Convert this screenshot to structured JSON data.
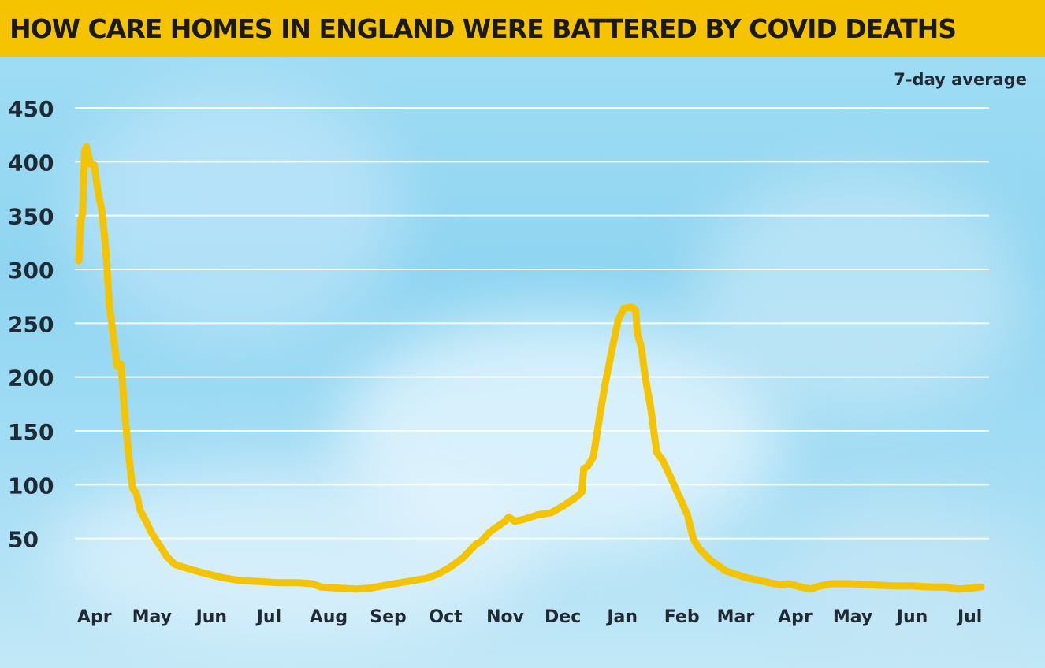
{
  "title": "HOW CARE HOMES IN ENGLAND WERE BATTERED BY COVID DEATHS",
  "colors": {
    "title_bg": "#f6c300",
    "line": "#f4c400",
    "gridline": "#ffffff",
    "text": "#1f2a33"
  },
  "chart_data": {
    "type": "line",
    "title": "HOW CARE HOMES IN ENGLAND WERE BATTERED BY COVID DEATHS",
    "subtitle": "7-day average",
    "xlabel": "",
    "ylabel": "",
    "ylim": [
      0,
      450
    ],
    "yticks": [
      50,
      100,
      150,
      200,
      250,
      300,
      350,
      400,
      450
    ],
    "xticks": [
      {
        "date": "2020-04-01",
        "label": "Apr"
      },
      {
        "date": "2020-05-01",
        "label": "May"
      },
      {
        "date": "2020-06-01",
        "label": "Jun"
      },
      {
        "date": "2020-07-01",
        "label": "Jul"
      },
      {
        "date": "2020-08-01",
        "label": "Aug"
      },
      {
        "date": "2020-09-01",
        "label": "Sep"
      },
      {
        "date": "2020-10-01",
        "label": "Oct"
      },
      {
        "date": "2020-11-01",
        "label": "Nov"
      },
      {
        "date": "2020-12-01",
        "label": "Dec"
      },
      {
        "date": "2021-01-01",
        "label": "Jan"
      },
      {
        "date": "2021-02-01",
        "label": "Feb"
      },
      {
        "date": "2021-03-01",
        "label": "Mar"
      },
      {
        "date": "2021-04-01",
        "label": "Apr"
      },
      {
        "date": "2021-05-01",
        "label": "May"
      },
      {
        "date": "2021-06-01",
        "label": "Jun"
      },
      {
        "date": "2021-07-01",
        "label": "Jul"
      }
    ],
    "grid": true,
    "series": [
      {
        "points": [
          [
            "2020-03-28",
            308
          ],
          [
            "2020-03-29",
            345
          ],
          [
            "2020-03-30",
            352
          ],
          [
            "2020-03-31",
            410
          ],
          [
            "2020-04-01",
            414
          ],
          [
            "2020-04-03",
            398
          ],
          [
            "2020-04-05",
            397
          ],
          [
            "2020-04-07",
            372
          ],
          [
            "2020-04-09",
            355
          ],
          [
            "2020-04-11",
            320
          ],
          [
            "2020-04-13",
            265
          ],
          [
            "2020-04-15",
            238
          ],
          [
            "2020-04-17",
            210
          ],
          [
            "2020-04-19",
            212
          ],
          [
            "2020-04-21",
            165
          ],
          [
            "2020-04-23",
            128
          ],
          [
            "2020-04-25",
            97
          ],
          [
            "2020-04-27",
            92
          ],
          [
            "2020-04-29",
            76
          ],
          [
            "2020-05-02",
            66
          ],
          [
            "2020-05-05",
            55
          ],
          [
            "2020-05-09",
            44
          ],
          [
            "2020-05-13",
            33
          ],
          [
            "2020-05-17",
            26
          ],
          [
            "2020-05-24",
            22
          ],
          [
            "2020-06-01",
            18
          ],
          [
            "2020-06-10",
            14
          ],
          [
            "2020-06-20",
            11
          ],
          [
            "2020-06-30",
            10
          ],
          [
            "2020-07-10",
            9
          ],
          [
            "2020-07-20",
            9
          ],
          [
            "2020-07-28",
            8
          ],
          [
            "2020-08-01",
            5
          ],
          [
            "2020-08-10",
            4
          ],
          [
            "2020-08-20",
            3
          ],
          [
            "2020-08-27",
            4
          ],
          [
            "2020-09-05",
            7
          ],
          [
            "2020-09-15",
            10
          ],
          [
            "2020-09-25",
            13
          ],
          [
            "2020-10-01",
            17
          ],
          [
            "2020-10-07",
            23
          ],
          [
            "2020-10-14",
            32
          ],
          [
            "2020-10-21",
            45
          ],
          [
            "2020-10-24",
            48
          ],
          [
            "2020-10-28",
            56
          ],
          [
            "2020-11-05",
            66
          ],
          [
            "2020-11-07",
            70
          ],
          [
            "2020-11-10",
            66
          ],
          [
            "2020-11-15",
            68
          ],
          [
            "2020-11-22",
            72
          ],
          [
            "2020-11-29",
            74
          ],
          [
            "2020-12-05",
            80
          ],
          [
            "2020-12-11",
            87
          ],
          [
            "2020-12-15",
            93
          ],
          [
            "2020-12-16",
            115
          ],
          [
            "2020-12-18",
            117
          ],
          [
            "2020-12-21",
            126
          ],
          [
            "2020-12-24",
            160
          ],
          [
            "2020-12-27",
            192
          ],
          [
            "2020-12-31",
            228
          ],
          [
            "2021-01-03",
            253
          ],
          [
            "2021-01-06",
            264
          ],
          [
            "2021-01-10",
            265
          ],
          [
            "2021-01-12",
            262
          ],
          [
            "2021-01-13",
            240
          ],
          [
            "2021-01-15",
            228
          ],
          [
            "2021-01-17",
            200
          ],
          [
            "2021-01-20",
            170
          ],
          [
            "2021-01-23",
            130
          ],
          [
            "2021-01-26",
            123
          ],
          [
            "2021-01-30",
            108
          ],
          [
            "2021-02-04",
            88
          ],
          [
            "2021-02-08",
            72
          ],
          [
            "2021-02-11",
            50
          ],
          [
            "2021-02-14",
            41
          ],
          [
            "2021-02-20",
            30
          ],
          [
            "2021-02-28",
            20
          ],
          [
            "2021-03-10",
            14
          ],
          [
            "2021-03-20",
            10
          ],
          [
            "2021-03-28",
            7
          ],
          [
            "2021-04-02",
            8
          ],
          [
            "2021-04-08",
            5
          ],
          [
            "2021-04-13",
            3
          ],
          [
            "2021-04-18",
            6
          ],
          [
            "2021-04-24",
            8
          ],
          [
            "2021-05-05",
            8
          ],
          [
            "2021-05-15",
            7
          ],
          [
            "2021-05-25",
            6
          ],
          [
            "2021-06-05",
            6
          ],
          [
            "2021-06-15",
            5
          ],
          [
            "2021-06-22",
            5
          ],
          [
            "2021-06-29",
            3
          ],
          [
            "2021-07-06",
            4
          ],
          [
            "2021-07-11",
            5
          ]
        ]
      }
    ]
  }
}
